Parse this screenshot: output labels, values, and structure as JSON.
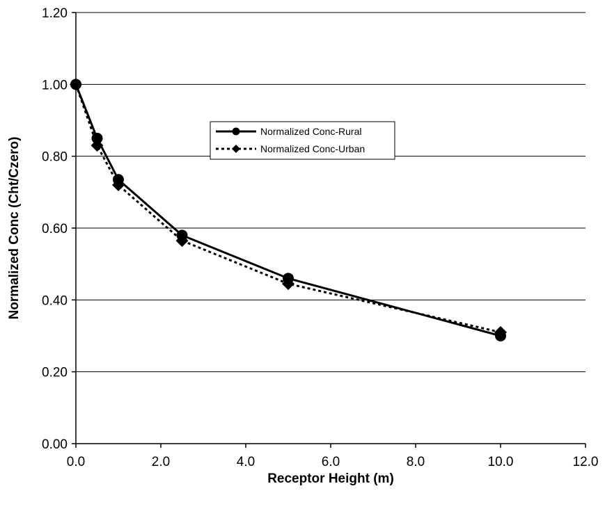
{
  "chart_data": {
    "type": "line",
    "xlabel": "Receptor Height (m)",
    "ylabel": "Normalized Conc (Cht/Czero)",
    "xlim": [
      0,
      12
    ],
    "ylim": [
      0,
      1.2
    ],
    "xticks": [
      "0.0",
      "2.0",
      "4.0",
      "6.0",
      "8.0",
      "10.0",
      "12.0"
    ],
    "yticks": [
      "0.00",
      "0.20",
      "0.40",
      "0.60",
      "0.80",
      "1.00",
      "1.20"
    ],
    "grid": "horizontal",
    "legend_position": "upper-middle",
    "series": [
      {
        "name": "Normalized Conc-Rural",
        "marker": "circle",
        "line": "solid",
        "color": "#000000",
        "x": [
          0,
          0.5,
          1,
          2.5,
          5,
          10
        ],
        "y": [
          1.0,
          0.85,
          0.735,
          0.58,
          0.46,
          0.3
        ]
      },
      {
        "name": "Normalized Conc-Urban",
        "marker": "diamond",
        "line": "dotted",
        "color": "#000000",
        "x": [
          0,
          0.5,
          1,
          2.5,
          5,
          10
        ],
        "y": [
          1.0,
          0.83,
          0.72,
          0.565,
          0.445,
          0.31
        ]
      }
    ]
  }
}
